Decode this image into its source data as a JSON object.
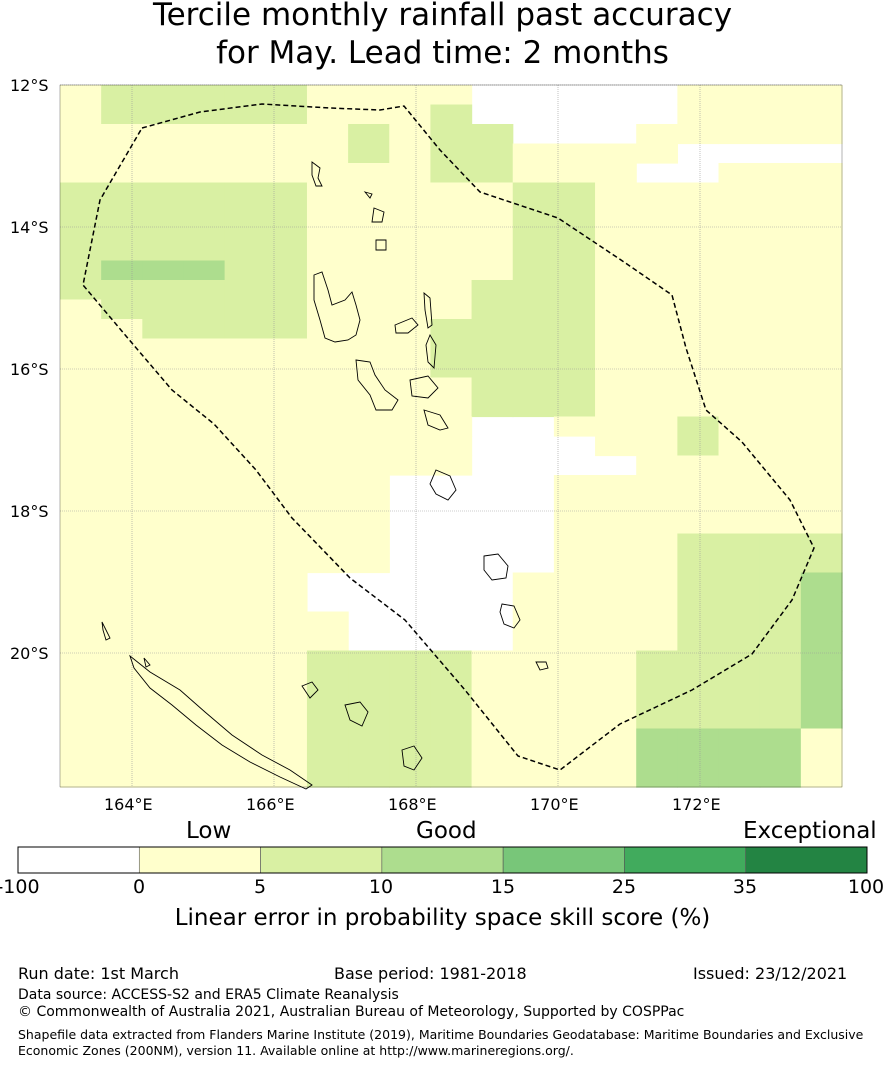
{
  "title_line1": "Tercile monthly rainfall past accuracy",
  "title_line2": "for May. Lead time: 2 months",
  "lat_labels": [
    "12°S",
    "14°S",
    "16°S",
    "18°S",
    "20°S"
  ],
  "lon_labels": [
    "164°E",
    "166°E",
    "168°E",
    "170°E",
    "172°E"
  ],
  "categories": {
    "low": "Low",
    "good": "Good",
    "exceptional": "Exceptional"
  },
  "colorbar": {
    "ticks": [
      "-100",
      "0",
      "5",
      "10",
      "15",
      "25",
      "35",
      "100"
    ],
    "colors": [
      "#ffffff",
      "#ffffcc",
      "#d9f0a3",
      "#addd8e",
      "#78c679",
      "#41ab5d",
      "#238443"
    ],
    "title": "Linear error in probability space skill score (%)"
  },
  "footer": {
    "run_date": "Run date: 1st March",
    "base_period": "Base period: 1981-2018",
    "issued": "Issued: 23/12/2021",
    "data_source": "Data source: ACCESS-S2 and ERA5 Climate Reanalysis",
    "copyright": "© Commonwealth of Australia 2021, Australian Bureau of Meteorology, Supported by COSPPac",
    "shapefile_line1": "Shapefile data extracted from Flanders Marine Institute (2019), Maritime Boundaries Geodatabase: Maritime Boundaries and Exclusive",
    "shapefile_line2": "Economic Zones (200NM), version 11. Available online at http://www.marineregions.org/."
  }
}
